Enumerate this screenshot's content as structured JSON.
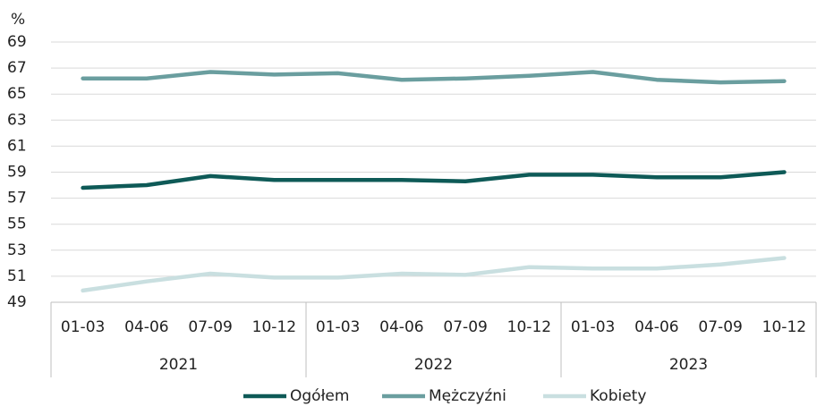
{
  "chart_data": {
    "type": "line",
    "ylabel": "%",
    "categories": [
      "01-03",
      "04-06",
      "07-09",
      "10-12",
      "01-03",
      "04-06",
      "07-09",
      "10-12",
      "01-03",
      "04-06",
      "07-09",
      "10-12"
    ],
    "groups": [
      "2021",
      "2022",
      "2023"
    ],
    "series": [
      {
        "name": "Ogółem",
        "color": "#0e5a57",
        "values": [
          57.8,
          58.0,
          58.7,
          58.4,
          58.4,
          58.4,
          58.3,
          58.8,
          58.8,
          58.6,
          58.6,
          59.0
        ]
      },
      {
        "name": "Mężczyźni",
        "color": "#6a9e9f",
        "values": [
          66.2,
          66.2,
          66.7,
          66.5,
          66.6,
          66.1,
          66.2,
          66.4,
          66.7,
          66.1,
          65.9,
          66.0
        ]
      },
      {
        "name": "Kobiety",
        "color": "#c9dfe0",
        "values": [
          49.9,
          50.6,
          51.2,
          50.9,
          50.9,
          51.2,
          51.1,
          51.7,
          51.6,
          51.6,
          51.9,
          52.4
        ]
      }
    ],
    "ylim": [
      49,
      69
    ],
    "yticks": [
      49,
      51,
      53,
      55,
      57,
      59,
      61,
      63,
      65,
      67,
      69
    ],
    "grid": true,
    "legend": "bottom"
  }
}
